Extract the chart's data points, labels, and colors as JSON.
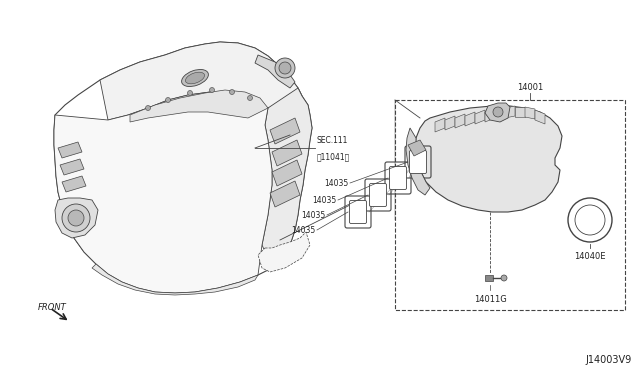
{
  "bg_color": "#ffffff",
  "fig_width": 6.4,
  "fig_height": 3.72,
  "dpi": 100,
  "labels": {
    "SEC111_line1": "SEC.111",
    "SEC111_line2": "】11041】",
    "14001": "14001",
    "14035": "14035",
    "14040E": "14040E",
    "14011G": "14011G",
    "FRONT": "FRONT",
    "diagram_id": "J14003V9"
  },
  "line_color": "#444444",
  "text_color": "#222222",
  "light_gray": "#cccccc",
  "mid_gray": "#999999",
  "dark_gray": "#555555"
}
